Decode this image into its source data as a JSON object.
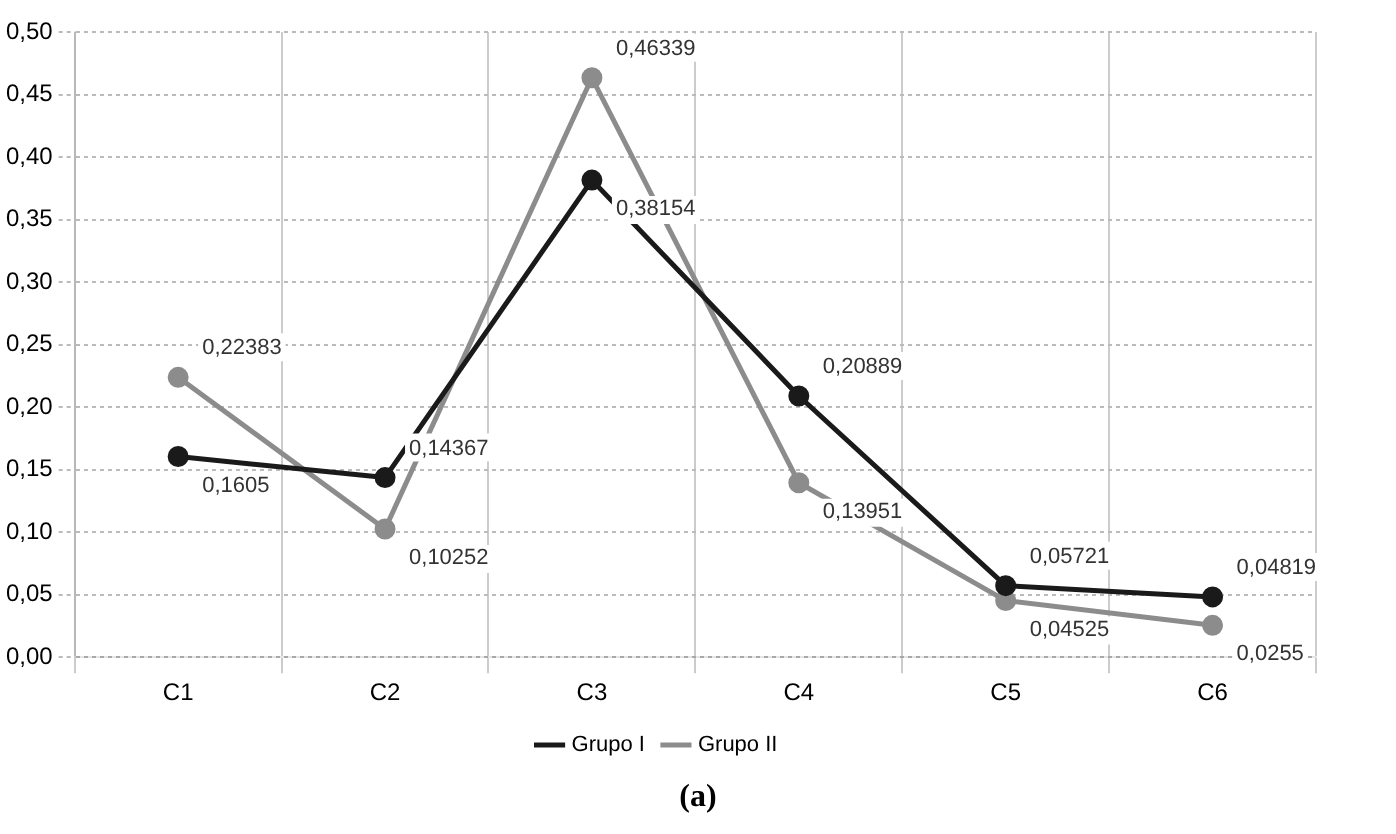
{
  "chart_data": {
    "type": "line",
    "categories": [
      "C1",
      "C2",
      "C3",
      "C4",
      "C5",
      "C6"
    ],
    "series": [
      {
        "name": "Grupo I",
        "color": "#1a1a1a",
        "values": [
          0.1605,
          0.14367,
          0.38154,
          0.20889,
          0.05721,
          0.04819
        ],
        "value_labels": [
          "0,1605",
          "0,14367",
          "0,38154",
          "0,20889",
          "0,05721",
          "0,04819"
        ]
      },
      {
        "name": "Grupo II",
        "color": "#8c8c8c",
        "values": [
          0.22383,
          0.10252,
          0.46339,
          0.13951,
          0.04525,
          0.0255
        ],
        "value_labels": [
          "0,22383",
          "0,10252",
          "0,46339",
          "0,13951",
          "0,04525",
          "0,0255"
        ]
      }
    ],
    "ylim": [
      0,
      0.5
    ],
    "yticks": [
      {
        "value": 0,
        "label": "0,00"
      },
      {
        "value": 0.05,
        "label": "0,05"
      },
      {
        "value": 0.1,
        "label": "0,10"
      },
      {
        "value": 0.15,
        "label": "0,15"
      },
      {
        "value": 0.2,
        "label": "0,20"
      },
      {
        "value": 0.25,
        "label": "0,25"
      },
      {
        "value": 0.3,
        "label": "0,30"
      },
      {
        "value": 0.35,
        "label": "0,35"
      },
      {
        "value": 0.4,
        "label": "0,40"
      },
      {
        "value": 0.45,
        "label": "0,45"
      },
      {
        "value": 0.5,
        "label": "0,50"
      }
    ],
    "grid": true,
    "legend": "bottom",
    "marker": "circle",
    "line_style": "solid",
    "annotations": [
      "(a)"
    ]
  }
}
